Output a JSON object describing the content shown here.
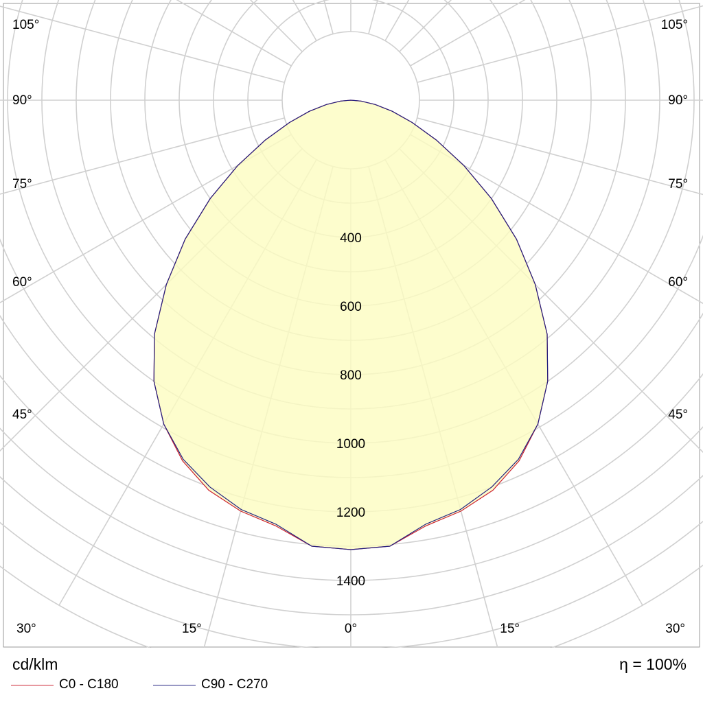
{
  "chart_data": {
    "type": "polar",
    "unit": "cd/klm",
    "efficiency": "η = 100%",
    "angle_labels_left": [
      "105°",
      "90°",
      "75°",
      "60°",
      "45°",
      "30°",
      "15°"
    ],
    "angle_labels_right": [
      "105°",
      "90°",
      "75°",
      "60°",
      "45°",
      "30°",
      "15°"
    ],
    "center_label": "0°",
    "radial_ticks": [
      400,
      600,
      800,
      1000,
      1200,
      1400
    ],
    "radial_max": 1400,
    "series": [
      {
        "name": "C0 - C180",
        "color": "#cc2030",
        "angles_deg": [
          0,
          5,
          10,
          15,
          20,
          25,
          30,
          35,
          40,
          45,
          50,
          55,
          60,
          65,
          70,
          75,
          80,
          85,
          90
        ],
        "values": [
          1310,
          1305,
          1260,
          1240,
          1210,
          1160,
          1090,
          1000,
          890,
          760,
          630,
          500,
          380,
          275,
          190,
          125,
          72,
          30,
          0
        ]
      },
      {
        "name": "C90 - C270",
        "color": "#202080",
        "angles_deg": [
          0,
          5,
          10,
          15,
          20,
          25,
          30,
          35,
          40,
          45,
          50,
          55,
          60,
          65,
          70,
          75,
          80,
          85,
          90
        ],
        "values": [
          1310,
          1305,
          1255,
          1235,
          1200,
          1155,
          1090,
          1000,
          890,
          760,
          630,
          500,
          380,
          275,
          190,
          125,
          72,
          30,
          0
        ]
      }
    ],
    "fill_color": "#fdfcc0",
    "grid_color": "#d0d0d0"
  }
}
